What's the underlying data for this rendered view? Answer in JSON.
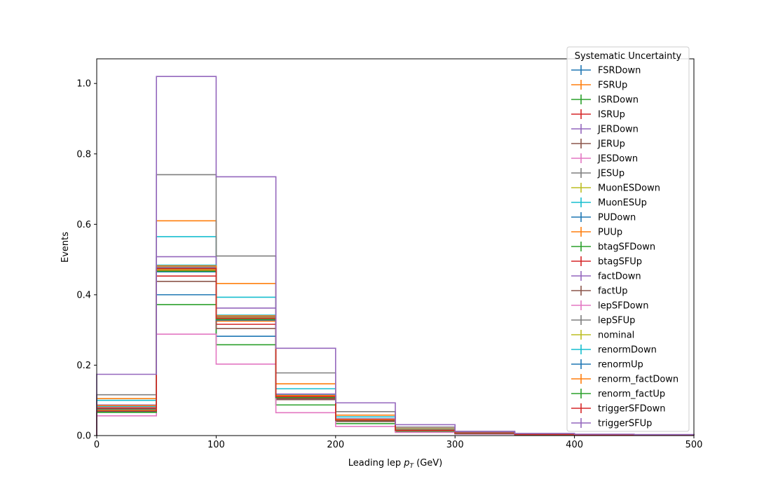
{
  "chart_data": {
    "type": "step",
    "title": "",
    "xlabel_main": "Leading lep ",
    "xlabel_sym": "p",
    "xlabel_sub": "T",
    "xlabel_unit": " (GeV)",
    "ylabel": "Events",
    "xlim": [
      0,
      500
    ],
    "ylim": [
      0,
      1.07
    ],
    "x_ticks": [
      "0",
      "100",
      "200",
      "300",
      "400",
      "500"
    ],
    "y_ticks": [
      "0.0",
      "0.2",
      "0.4",
      "0.6",
      "0.8",
      "1.0"
    ],
    "bin_edges": [
      0,
      50,
      100,
      150,
      200,
      250,
      300,
      350,
      400,
      450,
      500
    ],
    "legend": {
      "title": "Systematic Uncertainty",
      "location": "upper right"
    },
    "series": [
      {
        "name": "FSRDown",
        "color": "#1f77b4",
        "values": [
          0.072,
          0.4,
          0.282,
          0.105,
          0.041,
          0.014,
          0.006,
          0.003,
          0.002,
          0.001
        ]
      },
      {
        "name": "FSRUp",
        "color": "#ff7f0e",
        "values": [
          0.105,
          0.61,
          0.432,
          0.147,
          0.058,
          0.02,
          0.009,
          0.004,
          0.002,
          0.001
        ]
      },
      {
        "name": "ISRDown",
        "color": "#2ca02c",
        "values": [
          0.072,
          0.474,
          0.335,
          0.112,
          0.045,
          0.015,
          0.007,
          0.003,
          0.002,
          0.001
        ]
      },
      {
        "name": "ISRUp",
        "color": "#d62728",
        "values": [
          0.072,
          0.471,
          0.33,
          0.11,
          0.044,
          0.015,
          0.007,
          0.003,
          0.002,
          0.001
        ]
      },
      {
        "name": "JERDown",
        "color": "#9467bd",
        "values": [
          0.073,
          0.476,
          0.336,
          0.112,
          0.045,
          0.015,
          0.007,
          0.003,
          0.002,
          0.001
        ]
      },
      {
        "name": "JERUp",
        "color": "#8c564b",
        "values": [
          0.072,
          0.473,
          0.334,
          0.111,
          0.044,
          0.015,
          0.007,
          0.003,
          0.002,
          0.001
        ]
      },
      {
        "name": "JESDown",
        "color": "#e377c2",
        "values": [
          0.07,
          0.465,
          0.326,
          0.109,
          0.044,
          0.015,
          0.006,
          0.003,
          0.002,
          0.001
        ]
      },
      {
        "name": "JESUp",
        "color": "#7f7f7f",
        "values": [
          0.074,
          0.48,
          0.338,
          0.113,
          0.045,
          0.016,
          0.007,
          0.003,
          0.002,
          0.001
        ]
      },
      {
        "name": "MuonESDown",
        "color": "#bcbd22",
        "values": [
          0.072,
          0.474,
          0.334,
          0.111,
          0.044,
          0.015,
          0.007,
          0.003,
          0.002,
          0.001
        ]
      },
      {
        "name": "MuonESUp",
        "color": "#17becf",
        "values": [
          0.1,
          0.565,
          0.393,
          0.133,
          0.053,
          0.018,
          0.008,
          0.004,
          0.002,
          0.001
        ]
      },
      {
        "name": "PUDown",
        "color": "#1f77b4",
        "values": [
          0.073,
          0.476,
          0.34,
          0.113,
          0.045,
          0.015,
          0.007,
          0.003,
          0.002,
          0.001
        ]
      },
      {
        "name": "PUUp",
        "color": "#ff7f0e",
        "values": [
          0.071,
          0.47,
          0.325,
          0.109,
          0.043,
          0.015,
          0.006,
          0.003,
          0.002,
          0.001
        ]
      },
      {
        "name": "btagSFDown",
        "color": "#2ca02c",
        "values": [
          0.066,
          0.372,
          0.258,
          0.087,
          0.034,
          0.012,
          0.005,
          0.002,
          0.001,
          0.001
        ]
      },
      {
        "name": "btagSFUp",
        "color": "#d62728",
        "values": [
          0.079,
          0.453,
          0.316,
          0.106,
          0.042,
          0.014,
          0.006,
          0.003,
          0.002,
          0.001
        ]
      },
      {
        "name": "factDown",
        "color": "#9467bd",
        "values": [
          0.087,
          0.508,
          0.362,
          0.118,
          0.048,
          0.016,
          0.007,
          0.003,
          0.002,
          0.001
        ]
      },
      {
        "name": "factUp",
        "color": "#8c564b",
        "values": [
          0.076,
          0.438,
          0.304,
          0.102,
          0.04,
          0.014,
          0.006,
          0.003,
          0.002,
          0.001
        ]
      },
      {
        "name": "lepSFDown",
        "color": "#e377c2",
        "values": [
          0.056,
          0.288,
          0.203,
          0.065,
          0.026,
          0.009,
          0.004,
          0.002,
          0.001,
          0.001
        ]
      },
      {
        "name": "lepSFUp",
        "color": "#7f7f7f",
        "values": [
          0.116,
          0.741,
          0.51,
          0.178,
          0.068,
          0.024,
          0.011,
          0.005,
          0.003,
          0.002
        ]
      },
      {
        "name": "nominal",
        "color": "#bcbd22",
        "values": [
          0.072,
          0.474,
          0.334,
          0.111,
          0.044,
          0.015,
          0.007,
          0.003,
          0.002,
          0.001
        ]
      },
      {
        "name": "renormDown",
        "color": "#17becf",
        "values": [
          0.083,
          0.484,
          0.342,
          0.115,
          0.046,
          0.016,
          0.007,
          0.003,
          0.002,
          0.001
        ]
      },
      {
        "name": "renormUp",
        "color": "#1f77b4",
        "values": [
          0.068,
          0.465,
          0.328,
          0.109,
          0.043,
          0.015,
          0.006,
          0.003,
          0.002,
          0.001
        ]
      },
      {
        "name": "renorm_factDown",
        "color": "#ff7f0e",
        "values": [
          0.085,
          0.482,
          0.34,
          0.114,
          0.046,
          0.016,
          0.007,
          0.003,
          0.002,
          0.001
        ]
      },
      {
        "name": "renorm_factUp",
        "color": "#2ca02c",
        "values": [
          0.066,
          0.467,
          0.33,
          0.108,
          0.043,
          0.015,
          0.006,
          0.003,
          0.002,
          0.001
        ]
      },
      {
        "name": "triggerSFDown",
        "color": "#d62728",
        "values": [
          0.07,
          0.475,
          0.333,
          0.111,
          0.044,
          0.015,
          0.007,
          0.003,
          0.002,
          0.001
        ]
      },
      {
        "name": "triggerSFUp",
        "color": "#9467bd",
        "values": [
          0.174,
          1.02,
          0.735,
          0.248,
          0.093,
          0.031,
          0.012,
          0.006,
          0.004,
          0.003
        ]
      }
    ]
  }
}
